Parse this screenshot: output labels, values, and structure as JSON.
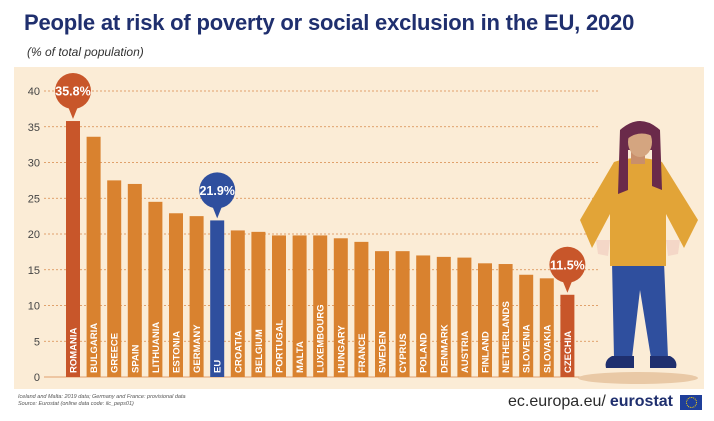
{
  "chart_data": {
    "type": "bar",
    "title": "People at risk of poverty or social exclusion in the EU, 2020",
    "subtitle": "(% of total population)",
    "categories": [
      "ROMANIA",
      "BULGARIA",
      "GREECE",
      "SPAIN",
      "LITHUANIA",
      "ESTONIA",
      "GERMANY",
      "EU",
      "CROATIA",
      "BELGIUM",
      "PORTUGAL",
      "MALTA",
      "LUXEMBOURG",
      "HUNGARY",
      "FRANCE",
      "SWEDEN",
      "CYPRUS",
      "POLAND",
      "DENMARK",
      "AUSTRIA",
      "FINLAND",
      "NETHERLANDS",
      "SLOVENIA",
      "SLOVAKIA",
      "CZECHIA"
    ],
    "values": [
      35.8,
      33.6,
      27.5,
      27.0,
      24.5,
      22.9,
      22.5,
      21.9,
      20.5,
      20.3,
      19.8,
      19.8,
      19.8,
      19.4,
      18.9,
      17.6,
      17.6,
      17.0,
      16.8,
      16.7,
      15.9,
      15.8,
      14.3,
      13.8,
      11.5
    ],
    "bar_colors": [
      "#c8562a",
      "#d9822f",
      "#d9822f",
      "#d9822f",
      "#d9822f",
      "#d9822f",
      "#d9822f",
      "#2f4f9e",
      "#d9822f",
      "#d9822f",
      "#d9822f",
      "#d9822f",
      "#d9822f",
      "#d9822f",
      "#d9822f",
      "#d9822f",
      "#d9822f",
      "#d9822f",
      "#d9822f",
      "#d9822f",
      "#d9822f",
      "#d9822f",
      "#d9822f",
      "#d9822f",
      "#c8562a"
    ],
    "yticks": [
      0,
      5,
      10,
      15,
      20,
      25,
      30,
      35,
      40
    ],
    "ylim": [
      0,
      40
    ],
    "grid": true,
    "callouts": [
      {
        "category": "ROMANIA",
        "label": "35.8%",
        "color": "#c8562a"
      },
      {
        "category": "EU",
        "label": "21.9%",
        "color": "#2f4f9e"
      },
      {
        "category": "CZECHIA",
        "label": "11.5%",
        "color": "#c8562a"
      }
    ]
  },
  "footnote": {
    "line1": "Iceland and Malta: 2019 data; Germany and France: provisional data",
    "line2": "Source: Eurostat (online data code: ilc_peps01)"
  },
  "brand": {
    "site": "ec.europa.eu/",
    "name": "eurostat"
  },
  "colors": {
    "title": "#1f2f6e",
    "bar_default": "#d9822f",
    "bar_highlight": "#c8562a",
    "bar_eu": "#2f4f9e",
    "plot_background": "#fbecd6",
    "grid": "#d8884a"
  }
}
